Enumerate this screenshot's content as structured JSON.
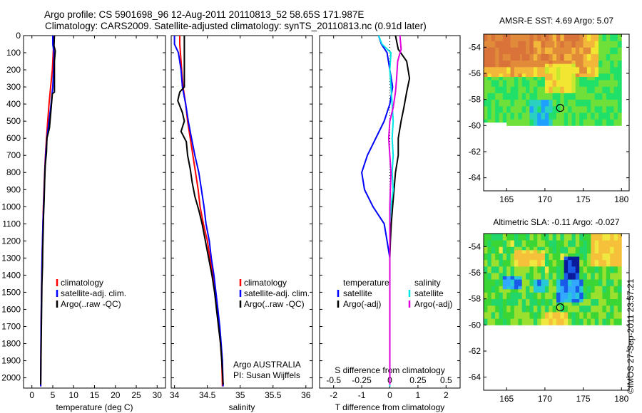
{
  "header": {
    "line1": "Argo profile: CS 5901698_96 12-Aug-2011 20110813_52 58.65S 171.987E",
    "line2": "Climatology: CARS2009. Satellite-adjusted climatology: synTS_20110813.nc (0.91d later)"
  },
  "footer_stamp": "©IMOS 27-Sep-2011 23:57:21",
  "colors": {
    "climatology": "#ff0000",
    "satellite": "#0000ff",
    "argo": "#000000",
    "sal_satellite": "#00e5e5",
    "sal_argo": "#dd00dd"
  },
  "chart_data": [
    {
      "type": "line",
      "xlabel": "temperature (deg C)",
      "ylabel": "",
      "xlim": [
        -2,
        32
      ],
      "ylim": [
        2060,
        0
      ],
      "xticks": [
        0,
        5,
        10,
        15,
        20,
        25,
        30
      ],
      "yticks": [
        0,
        100,
        200,
        300,
        400,
        500,
        600,
        700,
        800,
        900,
        1000,
        1100,
        1200,
        1300,
        1400,
        1500,
        1600,
        1700,
        1800,
        1900,
        2000
      ],
      "legend": [
        "climatology",
        "satellite-adj. clim.",
        "Argo(..raw -QC)"
      ],
      "series": [
        {
          "name": "climatology",
          "color": "#ff0000",
          "x": [
            5.2,
            5.2,
            5.1,
            4.9,
            4.5,
            4.1,
            3.8,
            3.5,
            3.25,
            3.05,
            2.9,
            2.75,
            2.65,
            2.55,
            2.45,
            2.38,
            2.3,
            2.25,
            2.2,
            2.17,
            2.14,
            2.12
          ],
          "y": [
            0,
            50,
            100,
            200,
            300,
            400,
            500,
            600,
            700,
            800,
            900,
            1000,
            1100,
            1200,
            1300,
            1400,
            1500,
            1600,
            1700,
            1800,
            1900,
            2050
          ]
        },
        {
          "name": "satellite-adj. clim.",
          "color": "#0000ff",
          "x": [
            5.0,
            5.0,
            5.3,
            5.2,
            5.0,
            4.6,
            4.1,
            3.6,
            3.3,
            3.1,
            2.95,
            2.8,
            2.65,
            2.55,
            2.45,
            2.38,
            2.3,
            2.25,
            2.2,
            2.17,
            2.14,
            2.12
          ],
          "y": [
            0,
            50,
            100,
            200,
            300,
            400,
            500,
            600,
            700,
            800,
            900,
            1000,
            1100,
            1200,
            1300,
            1400,
            1500,
            1600,
            1700,
            1800,
            1900,
            2050
          ]
        },
        {
          "name": "Argo(..raw -QC)",
          "color": "#000000",
          "x": [
            5.4,
            5.3,
            5.6,
            5.4,
            5.4,
            4.9,
            4.5,
            4.2,
            3.6,
            3.5,
            3.2,
            3.05,
            2.95,
            2.8,
            2.7,
            2.6,
            2.55,
            2.4,
            2.35,
            2.3,
            2.25,
            2.2,
            2.15,
            2.1
          ],
          "y": [
            0,
            60,
            90,
            150,
            330,
            340,
            460,
            540,
            600,
            680,
            760,
            850,
            950,
            1050,
            1150,
            1250,
            1350,
            1450,
            1550,
            1650,
            1750,
            1850,
            1950,
            2040
          ]
        }
      ]
    },
    {
      "type": "line",
      "xlabel": "salinity",
      "ylabel": "",
      "xlim": [
        33.95,
        36.1
      ],
      "ylim": [
        2060,
        0
      ],
      "xticks": [
        34,
        34.5,
        35,
        35.5,
        36
      ],
      "legend": [
        "climatology",
        "satellite-adj. clim.",
        "Argo(..raw -QC)"
      ],
      "annotations": [
        "Argo AUSTRALIA",
        "PI: Susan Wijffels"
      ],
      "series": [
        {
          "name": "climatology",
          "color": "#ff0000",
          "x": [
            34.08,
            34.08,
            34.09,
            34.11,
            34.13,
            34.17,
            34.2,
            34.24,
            34.28,
            34.32,
            34.36,
            34.39,
            34.44,
            34.5,
            34.54,
            34.59,
            34.63,
            34.66,
            34.68,
            34.7,
            34.72,
            34.73
          ],
          "y": [
            0,
            50,
            100,
            200,
            300,
            400,
            500,
            600,
            700,
            800,
            900,
            1000,
            1100,
            1200,
            1300,
            1400,
            1500,
            1600,
            1700,
            1800,
            1900,
            2050
          ]
        },
        {
          "name": "satellite-adj. clim.",
          "color": "#0000ff",
          "x": [
            34.0,
            34.0,
            34.06,
            34.1,
            34.12,
            34.17,
            34.21,
            34.26,
            34.31,
            34.37,
            34.41,
            34.45,
            34.48,
            34.53,
            34.56,
            34.6,
            34.63,
            34.66,
            34.69,
            34.71,
            34.73,
            34.74
          ],
          "y": [
            0,
            50,
            100,
            200,
            300,
            400,
            500,
            600,
            700,
            800,
            900,
            1000,
            1100,
            1200,
            1300,
            1400,
            1500,
            1600,
            1700,
            1800,
            1900,
            2050
          ]
        },
        {
          "name": "Argo(..raw -QC)",
          "color": "#000000",
          "x": [
            34.15,
            34.15,
            34.15,
            34.15,
            34.08,
            34.05,
            34.12,
            34.15,
            34.1,
            34.18,
            34.2,
            34.24,
            34.27,
            34.31,
            34.37,
            34.42,
            34.47,
            34.52,
            34.57,
            34.61,
            34.64,
            34.67,
            34.7,
            34.72,
            34.74
          ],
          "y": [
            0,
            50,
            100,
            300,
            330,
            380,
            450,
            500,
            560,
            620,
            700,
            780,
            860,
            940,
            1020,
            1100,
            1200,
            1300,
            1400,
            1500,
            1600,
            1700,
            1800,
            1900,
            2040
          ]
        }
      ]
    },
    {
      "type": "line",
      "xlabel": "T difference from climatology",
      "x2label": "S difference from climatology",
      "xlim": [
        -2.5,
        2.5
      ],
      "x2lim": [
        -0.625,
        0.625
      ],
      "ylim": [
        2060,
        0
      ],
      "xticks": [
        -2,
        -1,
        0,
        1,
        2
      ],
      "x2ticks": [
        "-0.5",
        "-0.25",
        "0",
        "0.25",
        "0.5"
      ],
      "legend_temperature_title": "temperature",
      "legend_salinity_title": "salinity",
      "legend": [
        "satellite",
        "Argo(-adj)",
        "satellite",
        "Argo(-adj)"
      ],
      "series": [
        {
          "name": "temperature satellite",
          "color": "#0000ff",
          "x": [
            -0.4,
            -0.3,
            -0.1,
            0.0,
            0.1,
            0.0,
            -0.2,
            -0.5,
            -0.8,
            -1.0,
            -0.9,
            -0.6,
            -0.2,
            -0.1,
            0.0,
            0.0,
            0.0,
            0.0,
            0.0,
            0.0,
            0.0,
            0.0
          ],
          "y": [
            0,
            50,
            100,
            200,
            300,
            400,
            500,
            600,
            700,
            800,
            900,
            1000,
            1100,
            1200,
            1300,
            1400,
            1500,
            1600,
            1700,
            1800,
            1900,
            2050
          ]
        },
        {
          "name": "temperature Argo(-adj)",
          "color": "#000000",
          "x": [
            0.2,
            0.3,
            0.6,
            0.7,
            0.6,
            0.5,
            0.4,
            0.3,
            0.3,
            0.2,
            0.15,
            0.1,
            0.05,
            0.02,
            0.0,
            0.0,
            0.0,
            0.0,
            0.0,
            0.0,
            0.0
          ],
          "y": [
            0,
            80,
            150,
            250,
            330,
            420,
            500,
            600,
            700,
            800,
            900,
            1000,
            1100,
            1200,
            1300,
            1400,
            1500,
            1600,
            1700,
            1800,
            2040
          ]
        },
        {
          "name": "salinity satellite",
          "color": "#00e5e5",
          "x": [
            -0.1,
            -0.07,
            0.01,
            0.0,
            0.01,
            0.02,
            0.03,
            0.02,
            0.03,
            0.02,
            0.03,
            0.01,
            0.0,
            0.0,
            0.0,
            0.0,
            0.0,
            0.0,
            0.0,
            0.0,
            0.0,
            0.0
          ],
          "y": [
            0,
            50,
            100,
            200,
            300,
            400,
            500,
            600,
            700,
            800,
            900,
            1000,
            1100,
            1200,
            1300,
            1400,
            1500,
            1600,
            1700,
            1800,
            1900,
            2050
          ]
        },
        {
          "name": "salinity Argo(-adj)",
          "color": "#dd00dd",
          "x": [
            0.09,
            0.1,
            0.07,
            0.06,
            0.05,
            0.03,
            0.0,
            -0.01,
            0.0,
            0.01,
            0.0,
            0.0,
            0.0,
            0.0,
            0.0,
            0.0,
            0.0,
            0.0,
            0.0
          ],
          "y": [
            0,
            80,
            150,
            250,
            330,
            420,
            500,
            600,
            700,
            800,
            1000,
            1100,
            1200,
            1300,
            1400,
            1500,
            1600,
            1800,
            2040
          ]
        }
      ]
    },
    {
      "type": "heatmap",
      "title": "AMSR-E SST: 4.69 Argo: 5.07",
      "xlim": [
        162,
        181
      ],
      "ylim": [
        -65,
        -53
      ],
      "xticks": [
        165,
        170,
        175,
        180
      ],
      "yticks": [
        -54,
        -56,
        -58,
        -60,
        -62,
        -64
      ],
      "marker": {
        "lon": 171.99,
        "lat": -58.65
      }
    },
    {
      "type": "heatmap",
      "title": "Altimetric SLA: -0.11 Argo: -0.027",
      "xlim": [
        162,
        181
      ],
      "ylim": [
        -65,
        -53
      ],
      "xticks": [
        165,
        170,
        175,
        180
      ],
      "yticks": [
        -54,
        -56,
        -58,
        -60,
        -62,
        -64
      ],
      "marker": {
        "lon": 171.99,
        "lat": -58.65
      }
    }
  ]
}
